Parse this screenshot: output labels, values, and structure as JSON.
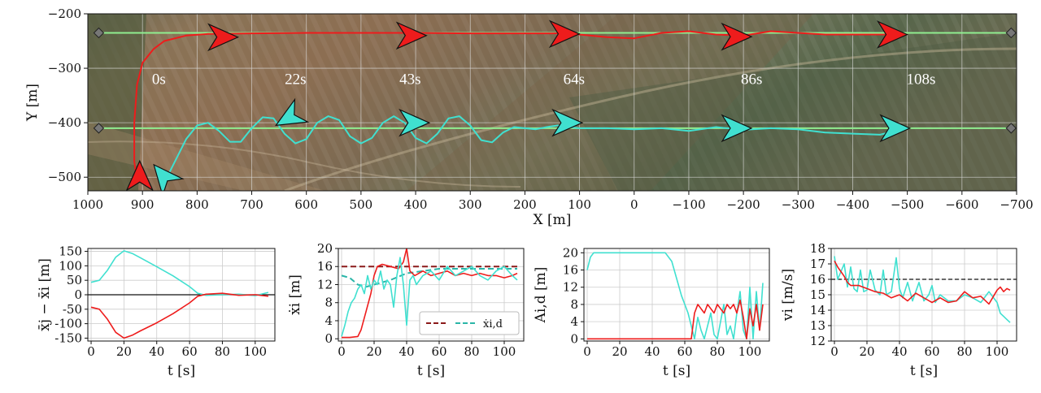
{
  "colors": {
    "red": "#ee1c1c",
    "cyan": "#40e0d0",
    "ref_red": "#8b1a1a",
    "ref_cyan": "#2ab5a8",
    "path_line": "#90ee90",
    "black": "#111111"
  },
  "chart_data": [
    {
      "type": "line",
      "panel": "map",
      "xlabel": "X [m]",
      "ylabel": "Y [m]",
      "xlim": [
        1000,
        -700
      ],
      "ylim": [
        -525,
        -200
      ],
      "xticks": [
        "1000",
        "900",
        "800",
        "700",
        "600",
        "500",
        "400",
        "300",
        "200",
        "100",
        "0",
        "−100",
        "−200",
        "−300",
        "−400",
        "−500",
        "−600",
        "−700"
      ],
      "yticks": [
        "−200",
        "−300",
        "−400",
        "−500"
      ],
      "grid": true,
      "background": "satellite-image",
      "time_labels": [
        {
          "text": "0s",
          "x": 870,
          "y": -320
        },
        {
          "text": "22s",
          "x": 620,
          "y": -320
        },
        {
          "text": "43s",
          "x": 410,
          "y": -320
        },
        {
          "text": "64s",
          "x": 110,
          "y": -320
        },
        {
          "text": "86s",
          "x": -215,
          "y": -320
        },
        {
          "text": "108s",
          "x": -525,
          "y": -320
        }
      ],
      "reference_paths": [
        {
          "y": -235,
          "x": [
            980,
            -690
          ]
        },
        {
          "y": -410,
          "x": [
            980,
            -690
          ]
        }
      ],
      "series": [
        {
          "color": "red",
          "x": [
            910,
            915,
            915,
            910,
            900,
            880,
            860,
            820,
            780,
            700,
            600,
            500,
            400,
            300,
            200,
            150,
            120,
            100,
            50,
            0,
            -50,
            -100,
            -150,
            -200,
            -250,
            -300,
            -350,
            -400,
            -450,
            -500
          ],
          "y": [
            -510,
            -470,
            -400,
            -330,
            -290,
            -265,
            -250,
            -240,
            -237,
            -236,
            -235,
            -235,
            -235,
            -236,
            -236,
            -236,
            -235,
            -238,
            -243,
            -245,
            -235,
            -232,
            -238,
            -240,
            -232,
            -235,
            -238,
            -238,
            -238,
            -238
          ]
        },
        {
          "color": "cyan",
          "x": [
            860,
            840,
            820,
            800,
            780,
            760,
            740,
            720,
            700,
            680,
            660,
            640,
            620,
            600,
            580,
            560,
            540,
            520,
            500,
            480,
            460,
            440,
            420,
            400,
            380,
            360,
            340,
            320,
            300,
            280,
            260,
            240,
            220,
            200,
            180,
            160,
            140,
            120,
            100,
            50,
            0,
            -50,
            -100,
            -150,
            -200,
            -250,
            -300,
            -350,
            -400,
            -450,
            -500
          ],
          "y": [
            -510,
            -470,
            -430,
            -405,
            -400,
            -415,
            -435,
            -435,
            -410,
            -390,
            -392,
            -420,
            -438,
            -430,
            -400,
            -388,
            -395,
            -425,
            -438,
            -428,
            -400,
            -388,
            -400,
            -428,
            -438,
            -420,
            -392,
            -388,
            -405,
            -432,
            -436,
            -418,
            -408,
            -410,
            -412,
            -408,
            -405,
            -408,
            -410,
            -410,
            -412,
            -410,
            -415,
            -408,
            -413,
            -410,
            -412,
            -418,
            -420,
            -422,
            -410
          ]
        }
      ],
      "arrows": [
        {
          "color": "red",
          "x": 755,
          "y": -243,
          "dir": "right"
        },
        {
          "color": "red",
          "x": 410,
          "y": -240,
          "dir": "right"
        },
        {
          "color": "red",
          "x": 130,
          "y": -237,
          "dir": "right"
        },
        {
          "color": "red",
          "x": -185,
          "y": -242,
          "dir": "right"
        },
        {
          "color": "red",
          "x": -470,
          "y": -238,
          "dir": "right"
        },
        {
          "color": "red",
          "x": 905,
          "y": -500,
          "dir": "up"
        },
        {
          "color": "cyan",
          "x": 860,
          "y": -500,
          "dir": "up-left"
        },
        {
          "color": "cyan",
          "x": 630,
          "y": -390,
          "dir": "down-left"
        },
        {
          "color": "cyan",
          "x": 405,
          "y": -400,
          "dir": "right"
        },
        {
          "color": "cyan",
          "x": 125,
          "y": -400,
          "dir": "right"
        },
        {
          "color": "cyan",
          "x": -185,
          "y": -410,
          "dir": "right"
        },
        {
          "color": "cyan",
          "x": -475,
          "y": -410,
          "dir": "right"
        }
      ]
    },
    {
      "type": "line",
      "panel": "relative-position",
      "xlabel": "t [s]",
      "ylabel": "x̄j − x̄i [m]",
      "xlim": [
        -2,
        112
      ],
      "ylim": [
        -160,
        160
      ],
      "xticks": [
        0,
        20,
        40,
        60,
        80,
        100
      ],
      "yticks": [
        150,
        100,
        50,
        0,
        -50,
        -100,
        -150
      ],
      "grid": true,
      "hline": 0,
      "series": [
        {
          "color": "cyan",
          "x": [
            0,
            5,
            10,
            15,
            20,
            25,
            30,
            40,
            50,
            60,
            65,
            70,
            80,
            90,
            100,
            108
          ],
          "y": [
            43,
            50,
            85,
            130,
            152,
            143,
            128,
            97,
            65,
            28,
            5,
            -2,
            0,
            2,
            -3,
            8
          ]
        },
        {
          "color": "red",
          "x": [
            0,
            5,
            10,
            15,
            20,
            25,
            30,
            40,
            50,
            60,
            65,
            70,
            80,
            90,
            100,
            108
          ],
          "y": [
            -43,
            -50,
            -85,
            -130,
            -150,
            -140,
            -125,
            -97,
            -65,
            -28,
            -5,
            2,
            5,
            -2,
            0,
            -5
          ]
        }
      ]
    },
    {
      "type": "line",
      "panel": "speed-along",
      "xlabel": "t [s]",
      "ylabel": "ẋi [m]",
      "xlim": [
        -2,
        112
      ],
      "ylim": [
        -0.5,
        20
      ],
      "xticks": [
        0,
        20,
        40,
        60,
        80,
        100
      ],
      "yticks": [
        0,
        4,
        8,
        12,
        16,
        20
      ],
      "grid": true,
      "legend": {
        "placement": "bottom-right",
        "label": "ẋi,d"
      },
      "series": [
        {
          "color": "ref_red",
          "dashed": true,
          "x": [
            0,
            108
          ],
          "y": [
            16,
            16
          ]
        },
        {
          "color": "ref_cyan",
          "dashed": true,
          "x": [
            0,
            5,
            10,
            15,
            20,
            30,
            40,
            50,
            60,
            80,
            100,
            108
          ],
          "y": [
            14,
            13.5,
            12,
            11.5,
            12,
            13,
            14.5,
            15,
            15.5,
            15.5,
            15.5,
            15.5
          ]
        },
        {
          "color": "red",
          "x": [
            0,
            5,
            10,
            12,
            15,
            18,
            20,
            22,
            25,
            30,
            35,
            38,
            40,
            42,
            45,
            50,
            55,
            60,
            65,
            70,
            75,
            80,
            85,
            90,
            95,
            100,
            105,
            108
          ],
          "y": [
            0.3,
            0.3,
            0.5,
            2,
            6,
            10,
            14,
            16,
            16.5,
            16,
            15.5,
            17,
            20,
            15,
            14,
            15,
            14,
            14.5,
            15,
            14,
            14.5,
            14,
            14.5,
            14,
            14,
            13.5,
            14,
            14.5
          ]
        },
        {
          "color": "cyan",
          "x": [
            0,
            2,
            4,
            6,
            8,
            10,
            12,
            14,
            16,
            18,
            20,
            22,
            24,
            26,
            28,
            30,
            32,
            34,
            36,
            38,
            40,
            42,
            44,
            46,
            48,
            50,
            55,
            60,
            65,
            70,
            75,
            80,
            85,
            90,
            95,
            100,
            105,
            108
          ],
          "y": [
            0.5,
            3,
            6,
            8,
            9,
            11,
            12,
            10,
            14,
            11,
            13,
            12,
            15,
            11,
            13,
            12,
            7,
            14,
            18,
            12,
            3,
            13,
            14,
            12,
            13,
            14,
            15,
            13,
            16,
            14,
            15,
            16,
            14,
            13,
            15,
            16,
            14,
            13
          ]
        }
      ]
    },
    {
      "type": "line",
      "panel": "amplitude",
      "xlabel": "t [s]",
      "ylabel": "Ai,d [m]",
      "xlim": [
        -2,
        112
      ],
      "ylim": [
        -0.5,
        21
      ],
      "xticks": [
        0,
        20,
        40,
        60,
        80,
        100
      ],
      "yticks": [
        0,
        4,
        8,
        12,
        16,
        20
      ],
      "grid": true,
      "series": [
        {
          "color": "cyan",
          "x": [
            0,
            2,
            4,
            20,
            40,
            48,
            52,
            55,
            58,
            60,
            62,
            64,
            66,
            68,
            70,
            72,
            74,
            76,
            78,
            80,
            82,
            84,
            86,
            88,
            90,
            92,
            94,
            96,
            98,
            100,
            102,
            104,
            106,
            108
          ],
          "y": [
            16,
            19,
            20,
            20,
            20,
            20,
            18,
            14,
            10,
            8,
            6,
            3,
            0,
            5,
            2,
            0,
            3,
            6,
            1,
            0,
            4,
            8,
            1,
            3,
            0,
            6,
            11,
            2,
            0,
            12,
            0,
            11,
            2,
            13
          ]
        },
        {
          "color": "red",
          "x": [
            0,
            64,
            65,
            66,
            68,
            70,
            72,
            74,
            76,
            78,
            80,
            82,
            84,
            86,
            88,
            90,
            92,
            94,
            96,
            98,
            100,
            102,
            104,
            106,
            108
          ],
          "y": [
            0,
            0,
            3,
            6,
            8,
            7,
            6,
            8,
            7,
            6,
            8,
            7,
            6,
            8,
            7,
            8,
            6,
            9,
            5,
            0,
            7,
            3,
            8,
            2,
            8
          ]
        }
      ]
    },
    {
      "type": "line",
      "panel": "velocity",
      "xlabel": "t [s]",
      "ylabel": "vi [m/s]",
      "xlim": [
        -2,
        112
      ],
      "ylim": [
        12,
        18
      ],
      "xticks": [
        0,
        20,
        40,
        60,
        80,
        100
      ],
      "yticks": [
        12,
        13,
        14,
        15,
        16,
        17,
        18
      ],
      "grid": true,
      "hline_dashed": 16,
      "series": [
        {
          "color": "cyan",
          "x": [
            0,
            2,
            4,
            6,
            8,
            10,
            12,
            14,
            16,
            18,
            20,
            22,
            25,
            28,
            30,
            32,
            35,
            38,
            40,
            42,
            45,
            48,
            50,
            52,
            55,
            58,
            60,
            62,
            65,
            70,
            75,
            80,
            85,
            90,
            95,
            100,
            102,
            104,
            106,
            108
          ],
          "y": [
            17.5,
            16,
            16.5,
            17,
            15.5,
            16.8,
            15.4,
            15.2,
            16.6,
            15.2,
            15.3,
            16.6,
            15.3,
            15,
            16.6,
            15,
            15.2,
            17.4,
            15.4,
            14.8,
            15.8,
            14.6,
            15.2,
            15.8,
            14.6,
            15,
            15.6,
            14.5,
            15,
            14.6,
            14.6,
            15,
            14.8,
            14.5,
            15.2,
            14.5,
            13.8,
            13.6,
            13.4,
            13.2
          ]
        },
        {
          "color": "red",
          "x": [
            0,
            2,
            4,
            6,
            8,
            10,
            15,
            20,
            25,
            30,
            35,
            40,
            45,
            50,
            55,
            60,
            65,
            70,
            75,
            80,
            85,
            90,
            95,
            100,
            102,
            104,
            106,
            108
          ],
          "y": [
            17.2,
            16.8,
            16.5,
            16.2,
            15.8,
            15.6,
            15.6,
            15.4,
            15.2,
            15.1,
            14.8,
            15,
            14.6,
            15.1,
            14.8,
            14.5,
            14.8,
            14.5,
            14.6,
            15.2,
            14.8,
            14.9,
            14.4,
            15.3,
            15.5,
            15.2,
            15.4,
            15.3
          ]
        }
      ]
    }
  ]
}
